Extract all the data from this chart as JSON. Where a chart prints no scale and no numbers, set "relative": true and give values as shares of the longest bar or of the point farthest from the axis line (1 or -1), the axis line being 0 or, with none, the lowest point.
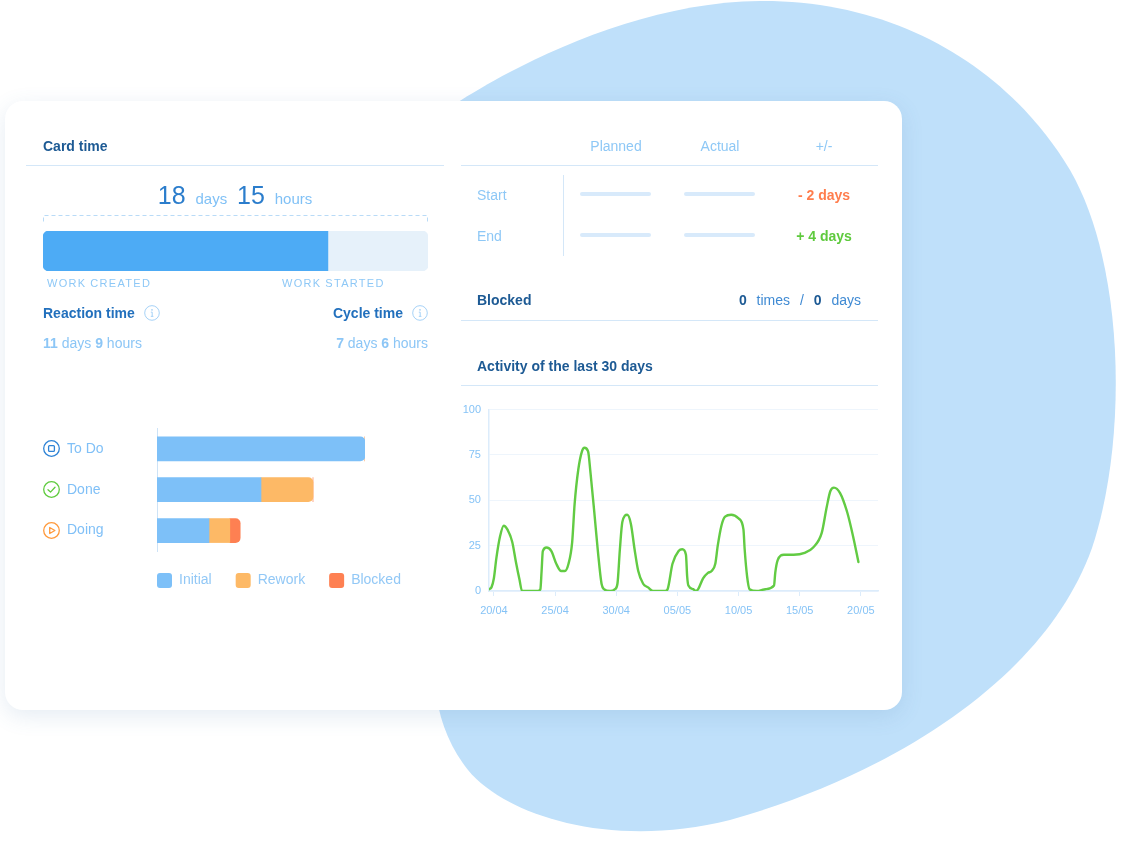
{
  "chart_data": [
    {
      "type": "bar",
      "orientation": "horizontal",
      "stacked": true,
      "relative": true,
      "title": "Card time",
      "categories": [
        null
      ],
      "series": [
        {
          "color": "#4dabf5",
          "values": [
            0.74
          ]
        },
        {
          "color": "#e6f1fa",
          "values": [
            0.26
          ]
        }
      ],
      "annotations": [
        "18 days 15 hours",
        "WORK CREATED",
        "WORK STARTED",
        "Reaction time",
        "11 days 9 hours",
        "Cycle time",
        "7 days 6 hours"
      ]
    },
    {
      "type": "bar",
      "orientation": "horizontal",
      "stacked": true,
      "relative": true,
      "categories": [
        "To Do",
        "Done",
        "Doing"
      ],
      "series": [
        {
          "name": "Initial",
          "color": "#7dc0f8",
          "values": [
            1,
            0.5,
            0.25
          ]
        },
        {
          "name": "Rework",
          "color": "#fdb966",
          "values": [
            0,
            0.25,
            0.1
          ]
        },
        {
          "name": "Blocked",
          "color": "#fe8052",
          "values": [
            0,
            0,
            0.05
          ]
        }
      ],
      "legend": "bottom"
    },
    {
      "type": "other",
      "annotations": [
        "Planned",
        "Actual",
        "+/-",
        "Start",
        "End",
        "- 2 days",
        "+ 4 days",
        "Blocked",
        "0 times / 0 days"
      ]
    },
    {
      "type": "line",
      "title": "Activity of the last 30 days",
      "color": "#62cb43",
      "x": [
        "--04-19T14:24",
        "--04-19T19:12",
        "--04-20T00:00",
        "--04-20T04:48",
        "--04-20T12:00",
        "--04-20T19:12",
        "--04-21T02:24",
        "--04-21T12:00",
        "--04-21T19:12",
        "--04-22T02:24",
        "--04-22T07:12",
        "--04-23T14:24",
        "--04-23T19:12",
        "--04-23T21:36",
        "--04-24T00:00",
        "--04-24T07:12",
        "--04-24T16:48",
        "--04-25T02:24",
        "--04-25T12:00",
        "--04-25T19:12",
        "--04-26T02:24",
        "--04-26T09:36",
        "--04-26T14:24",
        "--04-26T21:36",
        "--04-27T04:48",
        "--04-27T09:36",
        "--04-27T16:48",
        "--04-27T21:36",
        "--04-28T04:48",
        "--04-28T12:00",
        "--04-28T19:12",
        "--04-29T00:00",
        "--04-29T12:00",
        "--04-29T21:36",
        "--04-30T02:24",
        "--04-30T07:12",
        "--04-30T12:00",
        "--04-30T21:36",
        "--05-01T04:48",
        "--05-01T12:00",
        "--05-01T19:12",
        "--05-02T04:48",
        "--05-02T14:24",
        "--05-03T00:00",
        "--05-04T00:00",
        "--05-04T04:48",
        "--05-04T14:24",
        "--05-05T02:24",
        "--05-05T09:36",
        "--05-05T16:48",
        "--05-05T19:12",
        "--05-05T21:36",
        "--05-06T07:12",
        "--05-06T12:00",
        "--05-06T16:48",
        "--05-07T02:24",
        "--05-07T12:00",
        "--05-07T19:12",
        "--05-08T02:24",
        "--05-08T07:12",
        "--05-08T14:24",
        "--05-08T21:36",
        "--05-09T09:36",
        "--05-10T00:00",
        "--05-10T09:36",
        "--05-10T12:00",
        "--05-10T16:48",
        "--05-10T21:36",
        "--05-11T12:00",
        "--05-12T04:48",
        "--05-12T21:36",
        "--05-13T00:00",
        "--05-13T04:48",
        "--05-13T16:48",
        "--05-14T12:00",
        "--05-15T09:36",
        "--05-16T02:24",
        "--05-16T19:12",
        "--05-17T04:48",
        "--05-17T12:00",
        "--05-17T19:12",
        "--05-18T07:12",
        "--05-18T21:36",
        "--05-19T09:36",
        "--05-19T19:12"
      ],
      "values": [
        1,
        2,
        7,
        18,
        30,
        36,
        34,
        27,
        16,
        6,
        0,
        0,
        1,
        11,
        22,
        24,
        22,
        15,
        11,
        11,
        15,
        27,
        48,
        67,
        77,
        79,
        77,
        65,
        44,
        22,
        4,
        1,
        0,
        1,
        4,
        23,
        38,
        42,
        37,
        23,
        11,
        4,
        2,
        0,
        0,
        1,
        15,
        22,
        23,
        20,
        8,
        3,
        1,
        0,
        1,
        7,
        10,
        11,
        15,
        25,
        36,
        41,
        42,
        40,
        34,
        23,
        8,
        1,
        0,
        1,
        3,
        10,
        17,
        20,
        20,
        21,
        24,
        32,
        46,
        55,
        57,
        54,
        43,
        29,
        16
      ],
      "xlim": [
        "--04-19T14:24",
        "--05-21T09:36"
      ],
      "xticks": [
        {
          "value": "--04-20",
          "label": "20/04"
        },
        {
          "value": "--04-25",
          "label": "25/04"
        },
        {
          "value": "--04-30",
          "label": "30/04"
        },
        {
          "value": "--05-05",
          "label": "05/05"
        },
        {
          "value": "--05-10",
          "label": "10/05"
        },
        {
          "value": "--05-15",
          "label": "15/05"
        },
        {
          "value": "--05-20",
          "label": "20/05"
        }
      ],
      "ylim": [
        0,
        100
      ],
      "yticks": [
        0,
        25,
        50,
        75,
        100
      ],
      "grid": "y"
    }
  ]
}
